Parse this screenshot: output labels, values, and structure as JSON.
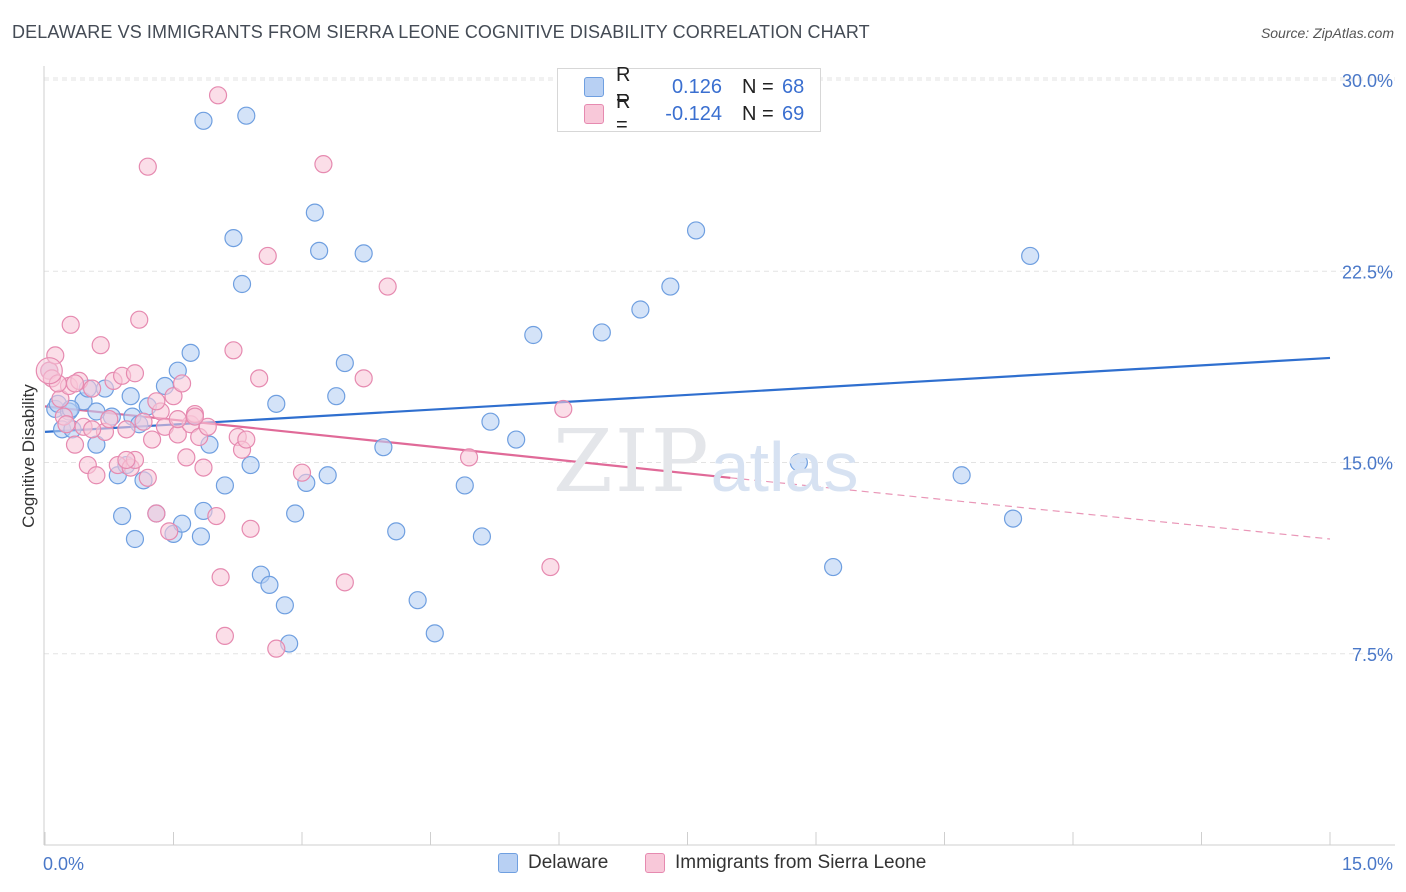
{
  "title": "DELAWARE VS IMMIGRANTS FROM SIERRA LEONE COGNITIVE DISABILITY CORRELATION CHART",
  "source": "Source: ZipAtlas.com",
  "watermark": {
    "zip": "ZIP",
    "atlas": "atlas"
  },
  "legend": {
    "rows": [
      {
        "r_label": "R =",
        "r_value": "0.126",
        "n_label": "N =",
        "n_value": "68",
        "color": "#6f9fe0",
        "fill": "#b8d0f3"
      },
      {
        "r_label": "R =",
        "r_value": "-0.124",
        "n_label": "N =",
        "n_value": "69",
        "color": "#e68ab0",
        "fill": "#f8c8d9"
      }
    ]
  },
  "chart_data": {
    "type": "scatter",
    "title": "DELAWARE VS IMMIGRANTS FROM SIERRA LEONE COGNITIVE DISABILITY CORRELATION CHART",
    "xlabel": "",
    "ylabel": "Cognitive Disability",
    "xlim": [
      0,
      15
    ],
    "ylim": [
      0,
      31
    ],
    "x_tick_labels": [
      "0.0%",
      "15.0%"
    ],
    "y_ticks": [
      7.5,
      15.0,
      22.5,
      30.0
    ],
    "y_tick_labels": [
      "7.5%",
      "15.0%",
      "22.5%",
      "30.0%"
    ],
    "grid": true,
    "legend_position": "bottom-center",
    "series": [
      {
        "name": "Delaware",
        "color": "#6f9fe0",
        "fill": "#b8d0f3",
        "trend": {
          "x0": 0.0,
          "y0": 16.2,
          "x1": 15.0,
          "y1": 19.1,
          "color": "#2f6fcf"
        },
        "points": [
          [
            0.05,
            18.6
          ],
          [
            0.12,
            17.1
          ],
          [
            0.15,
            17.3
          ],
          [
            0.2,
            16.3
          ],
          [
            0.28,
            17.0
          ],
          [
            0.32,
            16.3
          ],
          [
            0.45,
            17.4
          ],
          [
            0.5,
            17.9
          ],
          [
            0.6,
            15.7
          ],
          [
            0.7,
            17.9
          ],
          [
            0.78,
            16.8
          ],
          [
            0.85,
            14.5
          ],
          [
            0.9,
            12.9
          ],
          [
            0.95,
            14.9
          ],
          [
            1.02,
            16.8
          ],
          [
            1.05,
            12.0
          ],
          [
            1.1,
            16.5
          ],
          [
            1.15,
            14.3
          ],
          [
            1.2,
            17.2
          ],
          [
            1.3,
            13.0
          ],
          [
            1.4,
            18.0
          ],
          [
            1.5,
            12.2
          ],
          [
            1.55,
            18.6
          ],
          [
            1.6,
            12.6
          ],
          [
            1.7,
            19.3
          ],
          [
            1.82,
            12.1
          ],
          [
            1.85,
            13.1
          ],
          [
            1.92,
            15.7
          ],
          [
            2.1,
            14.1
          ],
          [
            2.2,
            23.8
          ],
          [
            2.3,
            22.0
          ],
          [
            2.4,
            14.9
          ],
          [
            2.52,
            10.6
          ],
          [
            2.62,
            10.2
          ],
          [
            2.7,
            17.3
          ],
          [
            2.8,
            9.4
          ],
          [
            2.85,
            7.9
          ],
          [
            2.92,
            13.0
          ],
          [
            3.05,
            14.2
          ],
          [
            3.15,
            24.8
          ],
          [
            3.2,
            23.3
          ],
          [
            3.3,
            14.5
          ],
          [
            3.4,
            17.6
          ],
          [
            3.5,
            18.9
          ],
          [
            3.72,
            23.2
          ],
          [
            3.95,
            15.6
          ],
          [
            4.1,
            12.3
          ],
          [
            4.35,
            9.6
          ],
          [
            4.55,
            8.3
          ],
          [
            4.9,
            14.1
          ],
          [
            5.1,
            12.1
          ],
          [
            5.2,
            16.6
          ],
          [
            5.5,
            15.9
          ],
          [
            5.7,
            20.0
          ],
          [
            6.5,
            20.1
          ],
          [
            6.95,
            21.0
          ],
          [
            7.3,
            21.9
          ],
          [
            7.6,
            24.1
          ],
          [
            8.8,
            15.0
          ],
          [
            9.2,
            10.9
          ],
          [
            10.7,
            14.5
          ],
          [
            11.3,
            12.8
          ],
          [
            11.5,
            23.1
          ],
          [
            1.85,
            28.4
          ],
          [
            2.35,
            28.6
          ],
          [
            0.3,
            17.1
          ],
          [
            1.0,
            17.6
          ],
          [
            0.6,
            17.0
          ]
        ]
      },
      {
        "name": "Immigrants from Sierra Leone",
        "color": "#e68ab0",
        "fill": "#f8c8d9",
        "trend": {
          "x0": 0.0,
          "y0": 17.2,
          "x1": 8.0,
          "y1": 14.4,
          "color": "#e06a98",
          "dash_to": {
            "x": 15.0,
            "y": 12.0
          }
        },
        "points": [
          [
            0.05,
            18.6
          ],
          [
            0.08,
            18.3
          ],
          [
            0.12,
            19.2
          ],
          [
            0.18,
            17.5
          ],
          [
            0.22,
            16.8
          ],
          [
            0.28,
            18.0
          ],
          [
            0.3,
            20.4
          ],
          [
            0.35,
            15.7
          ],
          [
            0.4,
            18.2
          ],
          [
            0.45,
            16.4
          ],
          [
            0.5,
            14.9
          ],
          [
            0.55,
            17.9
          ],
          [
            0.6,
            14.5
          ],
          [
            0.65,
            19.6
          ],
          [
            0.7,
            16.2
          ],
          [
            0.75,
            16.7
          ],
          [
            0.8,
            18.2
          ],
          [
            0.85,
            14.9
          ],
          [
            0.9,
            18.4
          ],
          [
            0.95,
            16.3
          ],
          [
            1.0,
            14.8
          ],
          [
            1.05,
            15.1
          ],
          [
            1.1,
            20.6
          ],
          [
            1.15,
            16.6
          ],
          [
            1.2,
            14.4
          ],
          [
            1.25,
            15.9
          ],
          [
            1.3,
            13.0
          ],
          [
            1.35,
            17.0
          ],
          [
            1.4,
            16.4
          ],
          [
            1.45,
            12.3
          ],
          [
            1.5,
            17.6
          ],
          [
            1.55,
            16.1
          ],
          [
            1.6,
            18.1
          ],
          [
            1.65,
            15.2
          ],
          [
            1.7,
            16.5
          ],
          [
            1.75,
            16.9
          ],
          [
            1.8,
            16.0
          ],
          [
            1.85,
            14.8
          ],
          [
            1.9,
            16.4
          ],
          [
            2.0,
            12.9
          ],
          [
            2.05,
            10.5
          ],
          [
            2.1,
            8.2
          ],
          [
            2.2,
            19.4
          ],
          [
            2.25,
            16.0
          ],
          [
            2.3,
            15.5
          ],
          [
            2.4,
            12.4
          ],
          [
            2.5,
            18.3
          ],
          [
            2.6,
            23.1
          ],
          [
            2.7,
            7.7
          ],
          [
            3.0,
            14.6
          ],
          [
            3.25,
            26.7
          ],
          [
            3.5,
            10.3
          ],
          [
            3.72,
            18.3
          ],
          [
            4.0,
            21.9
          ],
          [
            4.95,
            15.2
          ],
          [
            5.9,
            10.9
          ],
          [
            6.05,
            17.1
          ],
          [
            1.2,
            26.6
          ],
          [
            2.02,
            29.4
          ],
          [
            0.15,
            18.1
          ],
          [
            0.25,
            16.5
          ],
          [
            0.35,
            18.1
          ],
          [
            0.55,
            16.3
          ],
          [
            0.95,
            15.1
          ],
          [
            1.05,
            18.5
          ],
          [
            1.3,
            17.4
          ],
          [
            1.55,
            16.7
          ],
          [
            1.75,
            16.8
          ],
          [
            2.35,
            15.9
          ]
        ]
      }
    ]
  },
  "bottom_legend": [
    {
      "label": "Delaware",
      "color": "#6f9fe0",
      "fill": "#b8d0f3"
    },
    {
      "label": "Immigrants from Sierra Leone",
      "color": "#e68ab0",
      "fill": "#f8c8d9"
    }
  ]
}
